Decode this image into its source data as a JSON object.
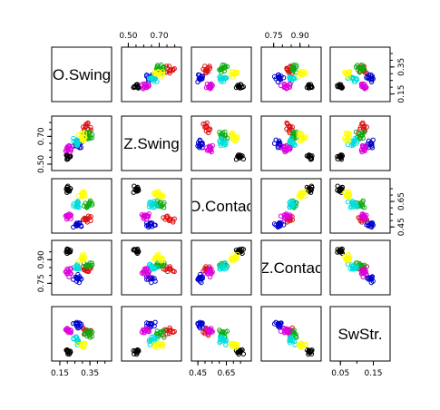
{
  "chart_data": {
    "type": "scatter",
    "title": "",
    "layout": "pairs-matrix",
    "variables": [
      {
        "name": "O.Swing",
        "label": "O.Swing",
        "range": [
          0.12,
          0.47
        ],
        "ticks": [
          "0.15",
          "0.35"
        ],
        "tick_values": [
          0.15,
          0.35
        ]
      },
      {
        "name": "Z.Swing",
        "label": "Z.Swing",
        "range": [
          0.48,
          0.82
        ],
        "ticks": [
          "0.50",
          "0.70"
        ],
        "tick_values": [
          0.5,
          0.7
        ]
      },
      {
        "name": "O.Contact",
        "label": "O.Contac",
        "range": [
          0.43,
          0.8
        ],
        "ticks": [
          "0.45",
          "0.65"
        ],
        "tick_values": [
          0.45,
          0.65
        ]
      },
      {
        "name": "Z.Contact",
        "label": "Z.Contac",
        "range": [
          0.7,
          1.0
        ],
        "ticks": [
          "0.75",
          "0.90"
        ],
        "tick_values": [
          0.75,
          0.9
        ]
      },
      {
        "name": "SwStr.",
        "label": "SwStr.",
        "range": [
          0.03,
          0.19
        ],
        "ticks": [
          "0.05",
          "0.15"
        ],
        "tick_values": [
          0.05,
          0.15
        ]
      }
    ],
    "tick_sides": {
      "top": [
        1,
        3
      ],
      "right": [
        0,
        2
      ],
      "bottom": [
        0,
        2,
        4
      ],
      "left": [
        1,
        3
      ]
    },
    "minor_ticks": [
      0.15,
      0.2,
      0.25,
      0.3,
      0.35,
      0.4,
      0.45,
      0.5,
      0.55,
      0.6,
      0.65,
      0.7,
      0.75,
      0.8,
      0.85,
      0.9,
      0.95,
      0.05,
      0.1
    ],
    "color_groups": [
      {
        "color": "#000000",
        "center": [
          0.2,
          0.55,
          0.74,
          0.96,
          0.05
        ]
      },
      {
        "color": "#dd1111",
        "center": [
          0.33,
          0.76,
          0.52,
          0.84,
          0.12
        ]
      },
      {
        "color": "#11aa11",
        "center": [
          0.34,
          0.71,
          0.62,
          0.86,
          0.11
        ]
      },
      {
        "color": "#0000cc",
        "center": [
          0.27,
          0.64,
          0.48,
          0.78,
          0.14
        ]
      },
      {
        "color": "#00dddd",
        "center": [
          0.26,
          0.66,
          0.63,
          0.85,
          0.09
        ]
      },
      {
        "color": "#dd00dd",
        "center": [
          0.21,
          0.61,
          0.53,
          0.82,
          0.12
        ]
      },
      {
        "color": "#ffff00",
        "center": [
          0.3,
          0.7,
          0.71,
          0.91,
          0.07
        ]
      }
    ]
  }
}
